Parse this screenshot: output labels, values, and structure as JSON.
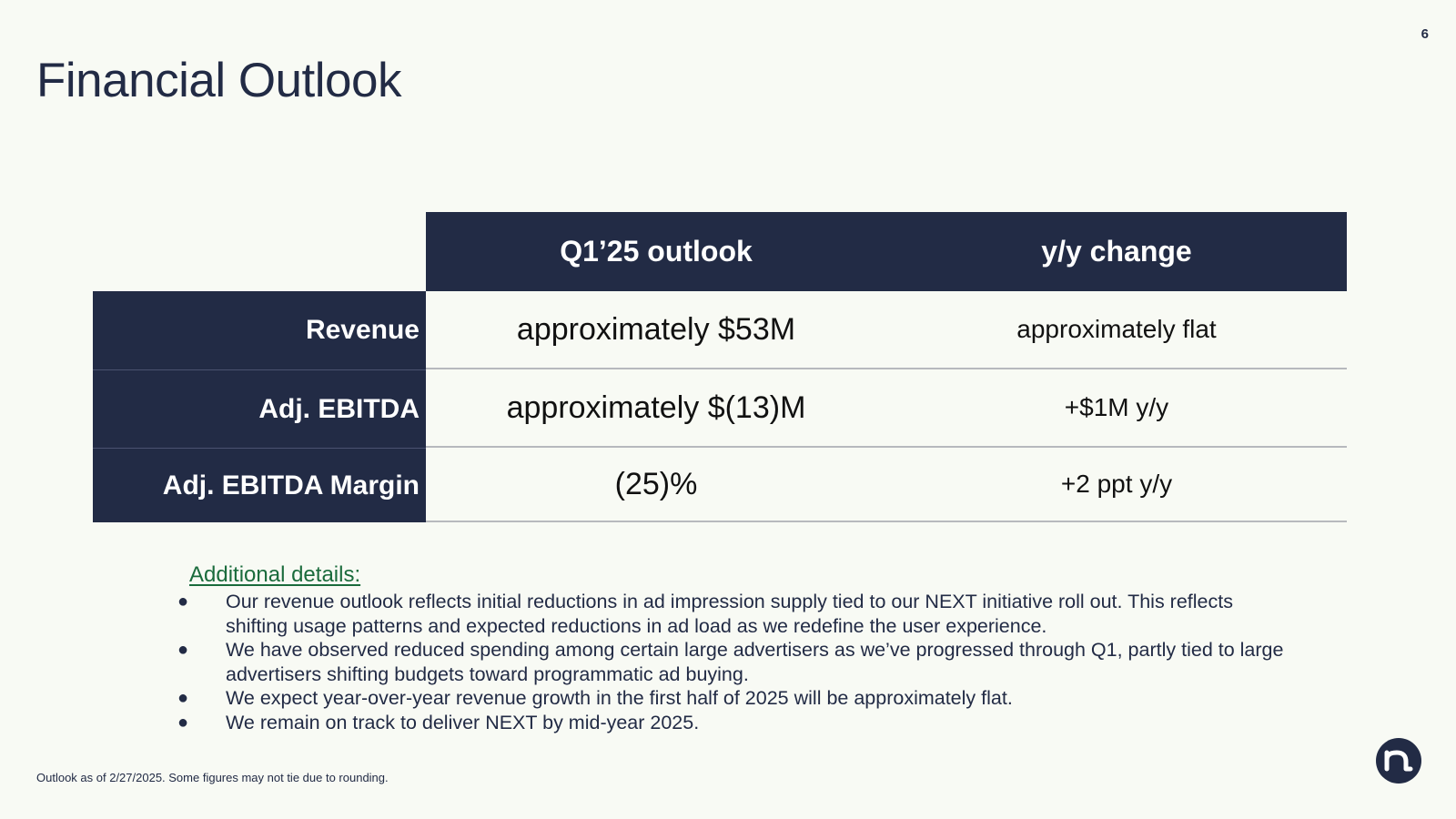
{
  "page_number": "6",
  "title": "Financial Outlook",
  "table": {
    "columns": [
      "Q1’25 outlook",
      "y/y change"
    ],
    "rows": [
      {
        "label": "Revenue",
        "q1_outlook": "approximately $53M",
        "yy_change": "approximately flat"
      },
      {
        "label": "Adj. EBITDA",
        "q1_outlook": "approximately $(13)M",
        "yy_change": "+$1M y/y"
      },
      {
        "label": "Adj. EBITDA Margin",
        "q1_outlook": "(25)%",
        "yy_change": "+2 ppt y/y"
      }
    ]
  },
  "details": {
    "heading": "Additional details:",
    "bullet_glyph": "●",
    "items": [
      "Our revenue outlook reflects initial reductions in ad impression supply tied to our NEXT initiative roll out. This reflects shifting usage patterns and expected reductions in ad load as we redefine the user experience.",
      "We have observed reduced spending among certain large advertisers as we’ve progressed through Q1, partly tied to large advertisers shifting budgets toward programmatic ad buying.",
      "We expect year-over-year revenue growth in the first half of 2025 will be approximately flat.",
      "We remain on track to deliver NEXT by mid-year 2025."
    ]
  },
  "footnote": "Outlook as of 2/27/2025. Some figures may not tie due to rounding.",
  "logo": {
    "icon": "n-logo-icon",
    "color": "#222b45"
  }
}
